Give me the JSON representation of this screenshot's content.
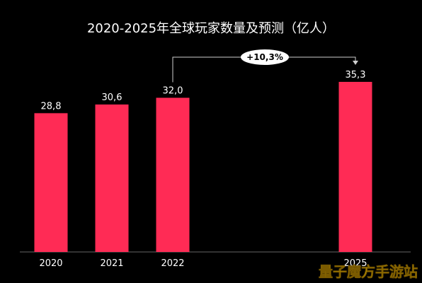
{
  "chart_data": {
    "type": "bar",
    "title": "2020-2025年全球玩家数量及预测（亿人）",
    "categories": [
      "2020",
      "2021",
      "2022",
      "2025"
    ],
    "values": [
      28.8,
      30.6,
      32.0,
      35.3
    ],
    "value_labels": [
      "28,8",
      "30,6",
      "32,0",
      "35,3"
    ],
    "ylim": [
      0,
      35.3
    ],
    "grid": false,
    "bar_color": "#ff2b55",
    "annotation": {
      "text": "+10,3%",
      "from": "2022",
      "to": "2025"
    }
  },
  "watermark": "量子魔方手游站"
}
